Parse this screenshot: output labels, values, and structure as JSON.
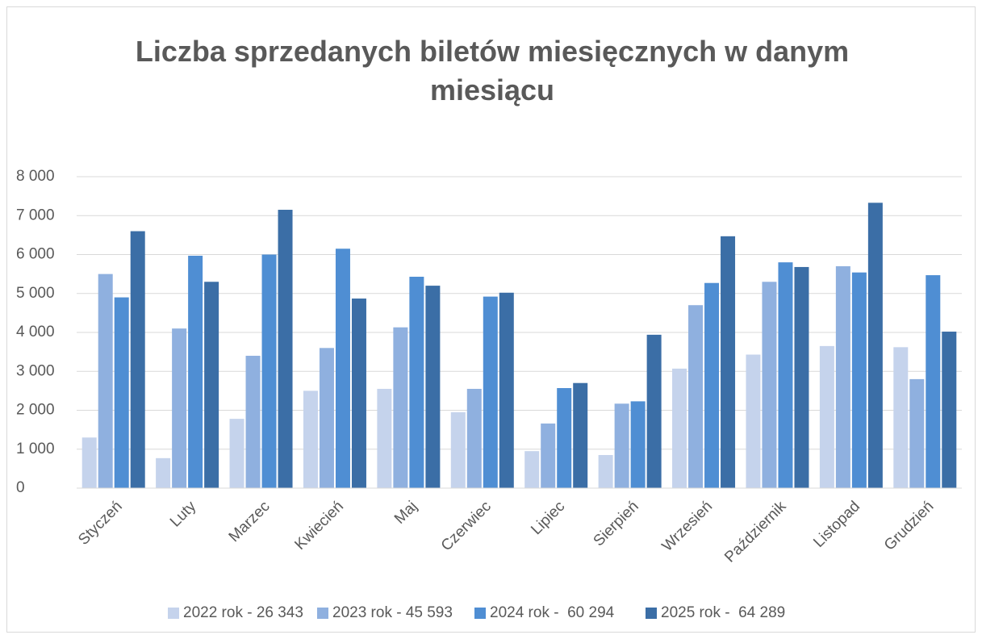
{
  "chart_data": {
    "type": "bar",
    "title": "Liczba sprzedanych biletów miesięcznych w danym miesiącu",
    "categories": [
      "Styczeń",
      "Luty",
      "Marzec",
      "Kwiecień",
      "Maj",
      "Czerwiec",
      "Lipiec",
      "Sierpień",
      "Wrzesień",
      "Październik",
      "Listopad",
      "Grudzień"
    ],
    "series": [
      {
        "name": "2022 rok - 26 343",
        "color": "#c5d3ec",
        "values": [
          1300,
          770,
          1780,
          2500,
          2550,
          1950,
          950,
          850,
          3070,
          3430,
          3650,
          3620
        ]
      },
      {
        "name": "2023 rok - 45 593",
        "color": "#8fb0df",
        "values": [
          5500,
          4100,
          3400,
          3600,
          4130,
          2550,
          1660,
          2170,
          4700,
          5300,
          5700,
          2800
        ]
      },
      {
        "name": "2024 rok -  60 294",
        "color": "#4f8ed3",
        "values": [
          4900,
          5970,
          6000,
          6150,
          5430,
          4920,
          2570,
          2230,
          5270,
          5800,
          5540,
          5470
        ]
      },
      {
        "name": "2025 rok -  64 289",
        "color": "#3b6ea6",
        "values": [
          6600,
          5300,
          7150,
          4870,
          5200,
          5020,
          2700,
          3940,
          6470,
          5680,
          7330,
          4020
        ]
      }
    ],
    "ylim": [
      0,
      8000
    ],
    "yticks": [
      0,
      {
        "value": 1000,
        "label": "1 000"
      },
      {
        "value": 2000,
        "label": "2 000"
      },
      {
        "value": 3000,
        "label": "3 000"
      },
      {
        "value": 4000,
        "label": "4 000"
      },
      {
        "value": 5000,
        "label": "5 000"
      },
      {
        "value": 6000,
        "label": "6 000"
      },
      {
        "value": 7000,
        "label": "7 000"
      },
      {
        "value": 8000,
        "label": "8 000"
      }
    ],
    "grid": true,
    "legend": "bottom"
  }
}
